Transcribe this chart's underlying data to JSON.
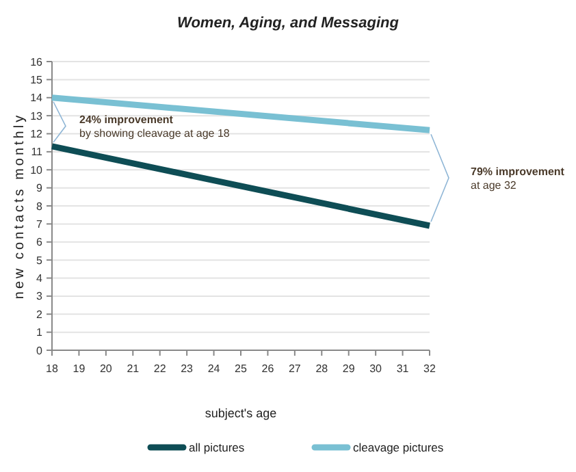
{
  "chart_data": {
    "type": "line",
    "title": "Women, Aging, and Messaging",
    "xlabel": "subject's age",
    "ylabel": "new contacts monthly",
    "x": [
      18,
      32
    ],
    "series": [
      {
        "name": "all pictures",
        "color": "#0e4d55",
        "values": [
          11.3,
          6.9
        ]
      },
      {
        "name": "cleavage pictures",
        "color": "#79c0d3",
        "values": [
          14.0,
          12.2
        ]
      }
    ],
    "xlim": [
      18,
      32
    ],
    "xticks": [
      18,
      19,
      20,
      21,
      22,
      23,
      24,
      25,
      26,
      27,
      28,
      29,
      30,
      31,
      32
    ],
    "ylim": [
      0,
      16
    ],
    "yticks": [
      0,
      1,
      2,
      3,
      4,
      5,
      6,
      7,
      8,
      9,
      10,
      11,
      12,
      13,
      14,
      15,
      16
    ],
    "grid": "y",
    "legend": "bottom",
    "marker": "none",
    "line_style": "solid",
    "annotations": [
      "24% improvement\nby showing cleavage at age 18",
      "79% improvement\nat age 32"
    ]
  }
}
